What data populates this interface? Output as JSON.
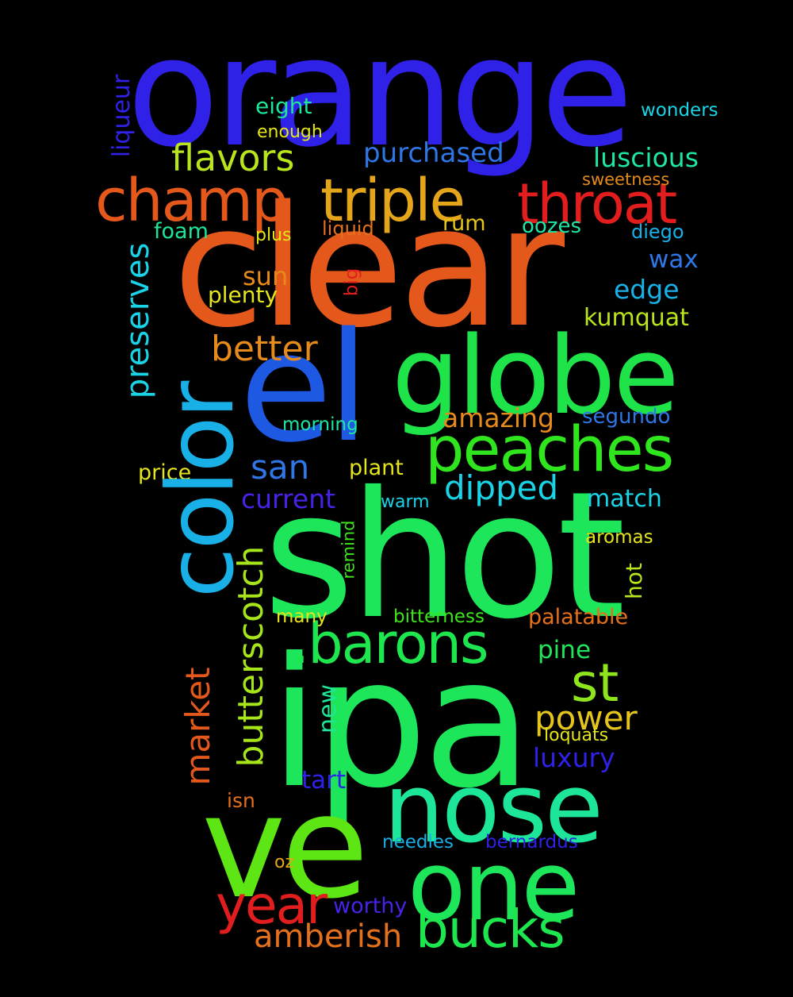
{
  "words": {
    "orange": {
      "text": "orange",
      "color": "#2f21e8"
    },
    "clear": {
      "text": "clear",
      "color": "#e5581b"
    },
    "shot": {
      "text": "shot",
      "color": "#1ee65a"
    },
    "ipa": {
      "text": "ipa",
      "color": "#1ee65a"
    },
    "ve": {
      "text": "ve",
      "color": "#5de514"
    },
    "el": {
      "text": "el",
      "color": "#1d59e3"
    },
    "globe": {
      "text": "globe",
      "color": "#1ee44a"
    },
    "color": {
      "text": "color",
      "color": "#18b0e6"
    },
    "nose": {
      "text": "nose",
      "color": "#1ee698"
    },
    "one": {
      "text": "one",
      "color": "#1ee65a"
    },
    "peaches": {
      "text": "peaches",
      "color": "#2fe51e"
    },
    "champ": {
      "text": "champ",
      "color": "#e5581b"
    },
    "triple": {
      "text": "triple",
      "color": "#e5a51b"
    },
    "throat": {
      "text": "throat",
      "color": "#e21d1d"
    },
    "barons": {
      "text": ".barons",
      "color": "#1ee64e"
    },
    "year": {
      "text": "year",
      "color": "#e21d1d"
    },
    "bucks": {
      "text": "bucks",
      "color": "#1ee64e"
    },
    "st": {
      "text": "st",
      "color": "#8fe51b"
    },
    "butterscotch": {
      "text": "butterscotch",
      "color": "#a7e51b"
    },
    "flavors": {
      "text": "flavors",
      "color": "#b8e51b"
    },
    "preserves": {
      "text": "preserves",
      "color": "#18d4e6"
    },
    "better": {
      "text": "better",
      "color": "#e58a1b"
    },
    "amberish": {
      "text": "amberish",
      "color": "#e5701b"
    },
    "market": {
      "text": "market",
      "color": "#e5581b"
    },
    "luscious": {
      "text": "luscious",
      "color": "#1ee6a4"
    },
    "purchased": {
      "text": "purchased",
      "color": "#2f76e6"
    },
    "dipped": {
      "text": "dipped",
      "color": "#18d4e6"
    },
    "power": {
      "text": "power",
      "color": "#e5c41b"
    },
    "san": {
      "text": "san",
      "color": "#2f76e6"
    },
    "amazing": {
      "text": "amazing",
      "color": "#e58a1b"
    },
    "current": {
      "text": "current",
      "color": "#4a21e8"
    },
    "edge": {
      "text": "edge",
      "color": "#18b0e6"
    },
    "match": {
      "text": "match",
      "color": "#18d4e6"
    },
    "luxury": {
      "text": "luxury",
      "color": "#2f21e8"
    },
    "kumquat": {
      "text": "kumquat",
      "color": "#b8e51b"
    },
    "sun": {
      "text": "sun",
      "color": "#e58a1b"
    },
    "wax": {
      "text": "wax",
      "color": "#2f76e6"
    },
    "eight": {
      "text": "eight",
      "color": "#1ee698"
    },
    "liqueur": {
      "text": "liqueur",
      "color": "#2f21e8"
    },
    "plenty": {
      "text": "plenty",
      "color": "#e5e51b"
    },
    "pine": {
      "text": "pine",
      "color": "#1ee65a"
    },
    "hot": {
      "text": "hot",
      "color": "#b8e51b"
    },
    "palatable": {
      "text": "palatable",
      "color": "#e5701b"
    },
    "new": {
      "text": "new",
      "color": "#1ee698"
    },
    "tart": {
      "text": "tart",
      "color": "#2f21e8"
    },
    "worthy": {
      "text": "worthy",
      "color": "#4a21e8"
    },
    "segundo": {
      "text": "segundo",
      "color": "#2f76e6"
    },
    "foam": {
      "text": "foam",
      "color": "#1ee698"
    },
    "rum": {
      "text": "rum",
      "color": "#e5c41b"
    },
    "oozes": {
      "text": "oozes",
      "color": "#1ee6a4"
    },
    "diego": {
      "text": "diego",
      "color": "#18b0e6"
    },
    "liquid": {
      "text": "liquid",
      "color": "#e5701b"
    },
    "plus": {
      "text": "plus",
      "color": "#e5e51b"
    },
    "big": {
      "text": "big",
      "color": "#e21d1d"
    },
    "sweetness": {
      "text": "sweetness",
      "color": "#e58a1b"
    },
    "wonders": {
      "text": "wonders",
      "color": "#18d4e6"
    },
    "enough": {
      "text": "enough",
      "color": "#e5e51b"
    },
    "morning": {
      "text": "morning",
      "color": "#1ee6a4"
    },
    "price": {
      "text": "price",
      "color": "#e5e51b"
    },
    "plant": {
      "text": "plant",
      "color": "#e5e51b"
    },
    "warm": {
      "text": "warm",
      "color": "#18d4e6"
    },
    "remind": {
      "text": "remind",
      "color": "#3ee51b"
    },
    "aromas": {
      "text": "aromas",
      "color": "#e5e51b"
    },
    "many": {
      "text": "many",
      "color": "#e5e51b"
    },
    "bitterness": {
      "text": "bitterness",
      "color": "#3ee51b"
    },
    "loquats": {
      "text": "loquats",
      "color": "#e5e51b"
    },
    "isn": {
      "text": "isn",
      "color": "#e5701b"
    },
    "needles": {
      "text": "needles",
      "color": "#18b0e6"
    },
    "bernardus": {
      "text": "bernardus",
      "color": "#2f21e8"
    },
    "oz": {
      "text": "oz",
      "color": "#e5a51b"
    }
  }
}
